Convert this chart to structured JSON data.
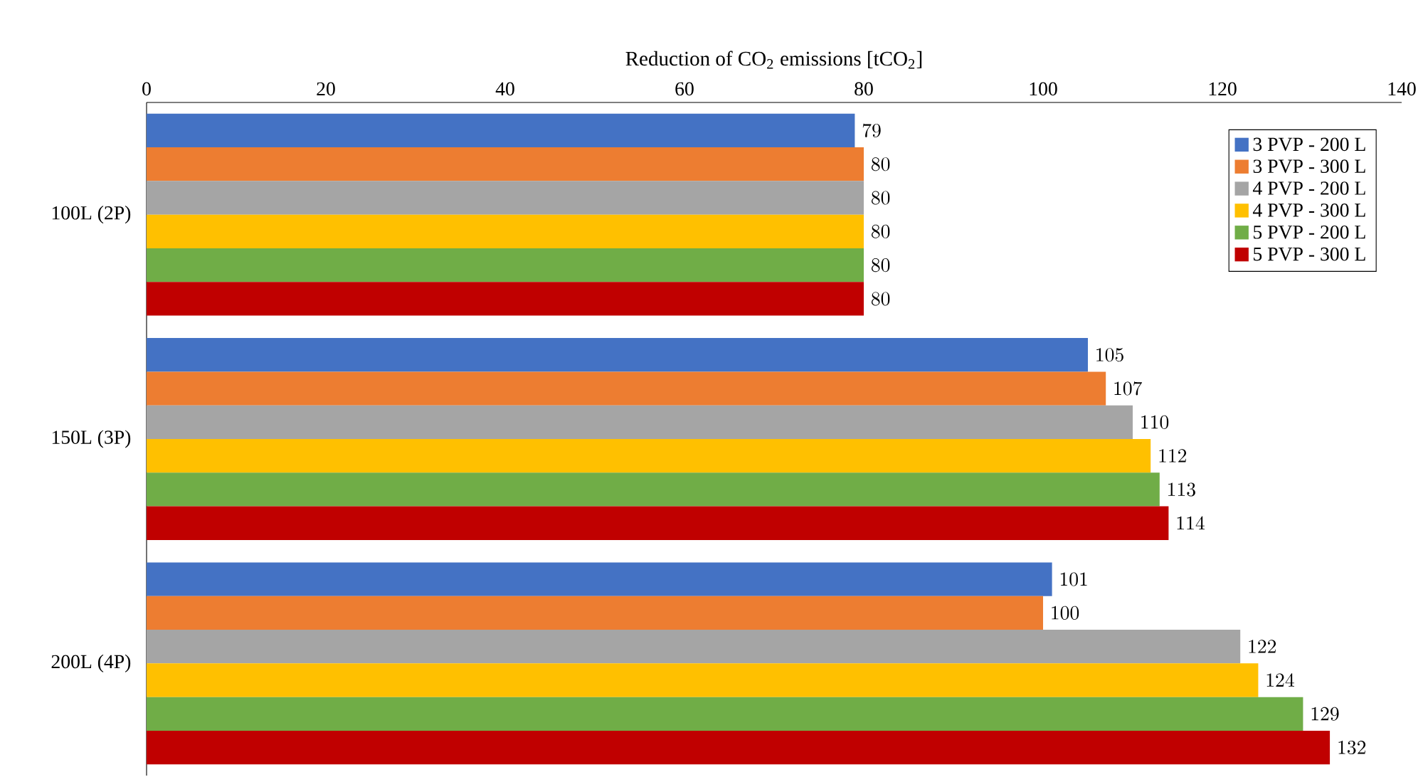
{
  "chart_data": {
    "type": "bar",
    "orientation": "horizontal",
    "xlabel": "Reduction of CO$_{2}$ emissions [tCO$_{2}$]",
    "categories": [
      "100L (2P)",
      "150L (3P)",
      "200L (4P)"
    ],
    "series": [
      {
        "name": "3 PVP - 200 L",
        "color": "#4472c4",
        "values": [
          79,
          105,
          101
        ]
      },
      {
        "name": "3 PVP - 300 L",
        "color": "#ed7d31",
        "values": [
          80,
          107,
          100
        ]
      },
      {
        "name": "4 PVP - 200 L",
        "color": "#a5a5a5",
        "values": [
          80,
          110,
          122
        ]
      },
      {
        "name": "4 PVP - 300 L",
        "color": "#ffc000",
        "values": [
          80,
          112,
          124
        ]
      },
      {
        "name": "5 PVP - 200 L",
        "color": "#70ad47",
        "values": [
          80,
          113,
          129
        ]
      },
      {
        "name": "5 PVP - 300 L",
        "color": "#c00000",
        "values": [
          80,
          114,
          132
        ]
      }
    ],
    "xlim": [
      0,
      140
    ],
    "xticks": [
      0,
      20,
      40,
      60,
      80,
      100,
      120,
      140
    ],
    "data_labels": true,
    "legend": "top right"
  }
}
